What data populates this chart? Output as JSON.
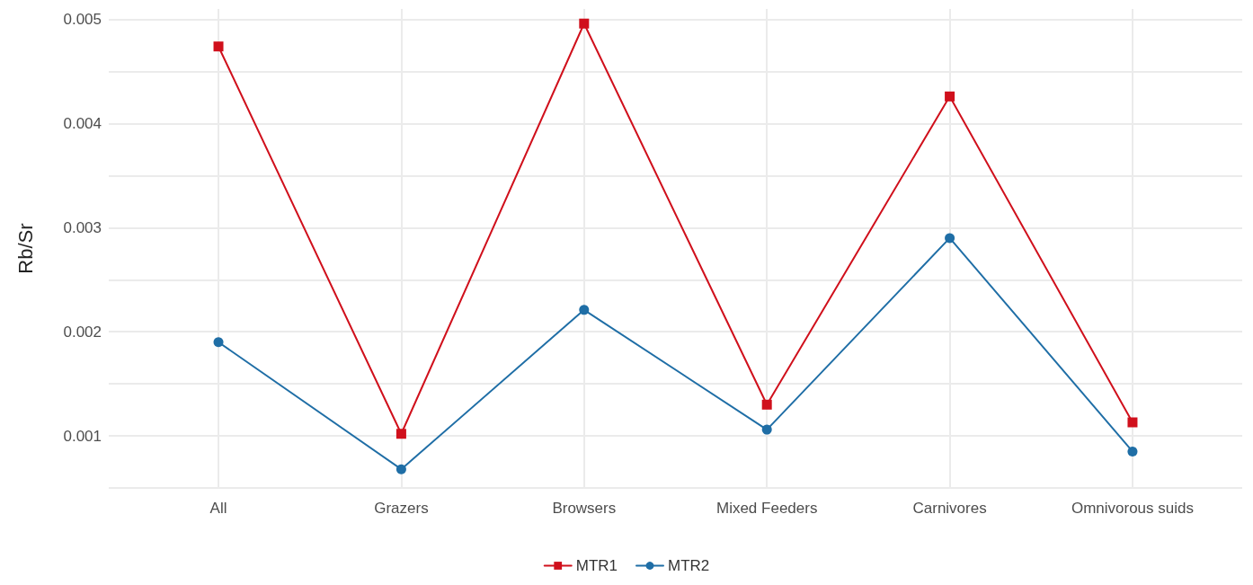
{
  "chart_data": {
    "type": "line",
    "ylabel": "Rb/Sr",
    "categories": [
      "All",
      "Grazers",
      "Browsers",
      "Mixed Feeders",
      "Carnivores",
      "Omnivorous suids"
    ],
    "series": [
      {
        "name": "MTR1",
        "color": "#d0101c",
        "marker": "square",
        "values": [
          0.00474,
          0.00102,
          0.00496,
          0.0013,
          0.00426,
          0.00113
        ]
      },
      {
        "name": "MTR2",
        "color": "#1f6ea6",
        "marker": "circle",
        "values": [
          0.0019,
          0.00068,
          0.00221,
          0.00106,
          0.0029,
          0.00085
        ]
      }
    ],
    "ylim": [
      0.0005,
      0.0051
    ],
    "yticks": [
      {
        "value": 0.0005,
        "label": null
      },
      0.001,
      {
        "value": 0.0015,
        "label": null
      },
      0.002,
      {
        "value": 0.0025,
        "label": null
      },
      0.003,
      {
        "value": 0.0035,
        "label": null
      },
      0.004,
      {
        "value": 0.0045,
        "label": null
      },
      0.005
    ],
    "grid": true,
    "legend": "bottom",
    "line_style": "solid"
  }
}
